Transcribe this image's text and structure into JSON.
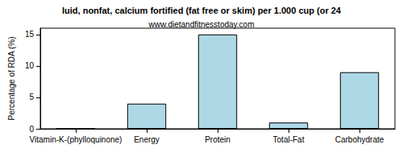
{
  "chart_data": {
    "type": "bar",
    "title": "luid, nonfat, calcium fortified (fat free or skim) per 1.000 cup (or 24",
    "subtitle": "www.dietandfitnesstoday.com",
    "ylabel": "Percentage of RDA (%)",
    "categories": [
      "Vitamin-K-(phylloquinone)",
      "Energy",
      "Protein",
      "Total-Fat",
      "Carbohydrate"
    ],
    "values": [
      0,
      4,
      15,
      1,
      9
    ],
    "color": "#add8e6",
    "ylim": [
      0,
      16
    ],
    "yticks": [
      0,
      5,
      10,
      15
    ],
    "grid": false
  }
}
